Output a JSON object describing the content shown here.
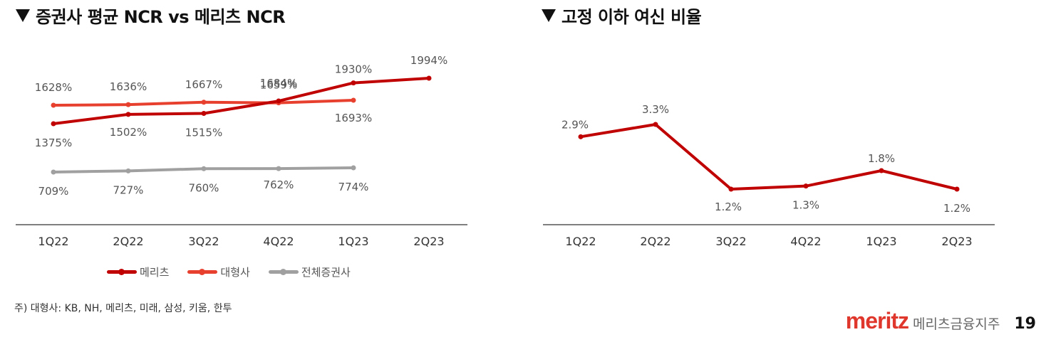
{
  "left_title": "증권사 평균 NCR vs 메리츠 NCR",
  "right_title": "고정 이하 여신 비율",
  "note": "주) 대형사: KB, NH, 메리츠, 미래, 삼성, 키움, 한투",
  "footer": {
    "brand": "meritz",
    "brand_kr": "메리츠금융지주",
    "page": "19"
  },
  "colors": {
    "meritz": "#c00000",
    "large": "#e8402f",
    "all": "#a0a0a0",
    "axis": "#333333"
  },
  "legend": [
    "메리츠",
    "대형사",
    "전체증권사"
  ],
  "chart_data": [
    {
      "type": "line",
      "title": "증권사 평균 NCR vs 메리츠 NCR",
      "categories": [
        "1Q22",
        "2Q22",
        "3Q22",
        "4Q22",
        "1Q23",
        "2Q23"
      ],
      "series": [
        {
          "name": "메리츠",
          "values": [
            1375,
            1502,
            1515,
            1684,
            1930,
            1994
          ],
          "labels": [
            "1375%",
            "1502%",
            "1515%",
            "1684%",
            "1930%",
            "1994%"
          ]
        },
        {
          "name": "대형사",
          "values": [
            1628,
            1636,
            1667,
            1659,
            1693,
            null
          ],
          "labels": [
            "1628%",
            "1636%",
            "1667%",
            "1659%",
            "1693%",
            ""
          ]
        },
        {
          "name": "전체증권사",
          "values": [
            709,
            727,
            760,
            762,
            774,
            null
          ],
          "labels": [
            "709%",
            "727%",
            "760%",
            "762%",
            "774%",
            ""
          ]
        }
      ],
      "unit": "%",
      "legend_position": "bottom",
      "grid": false
    },
    {
      "type": "line",
      "title": "고정 이하 여신 비율",
      "categories": [
        "1Q22",
        "2Q22",
        "3Q22",
        "4Q22",
        "1Q23",
        "2Q23"
      ],
      "series": [
        {
          "name": "고정 이하 여신 비율",
          "values": [
            2.9,
            3.3,
            1.2,
            1.3,
            1.8,
            1.2
          ],
          "labels": [
            "2.9%",
            "3.3%",
            "1.2%",
            "1.3%",
            "1.8%",
            "1.2%"
          ]
        }
      ],
      "unit": "%",
      "grid": false
    }
  ]
}
